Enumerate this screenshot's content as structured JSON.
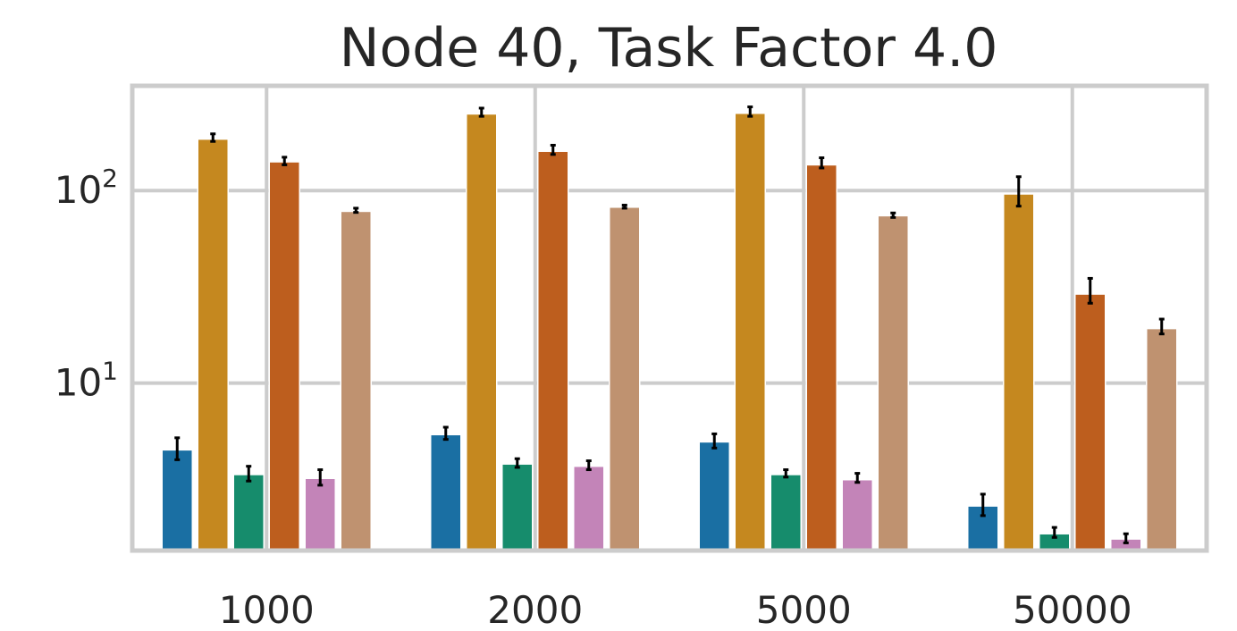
{
  "chart_data": {
    "type": "bar",
    "title": "Node 40, Task Factor 4.0",
    "xlabel": "",
    "ylabel": "",
    "y_scale": "log",
    "ylim": [
      1.35,
      350
    ],
    "y_ticks": [
      {
        "value": 10,
        "base": "10",
        "exp": "1"
      },
      {
        "value": 100,
        "base": "10",
        "exp": "2"
      }
    ],
    "grid": true,
    "legend": "none",
    "categories": [
      "1000",
      "2000",
      "5000",
      "50000"
    ],
    "series": [
      {
        "color": "#1a6fa3",
        "values": [
          4.5,
          5.4,
          4.95,
          2.3
        ],
        "errors": [
          [
            4.0,
            5.2
          ],
          [
            5.1,
            5.9
          ],
          [
            4.6,
            5.45
          ],
          [
            2.05,
            2.65
          ]
        ]
      },
      {
        "color": "#c5881f",
        "values": [
          185,
          250,
          252,
          96
        ],
        "errors": [
          [
            180,
            197
          ],
          [
            243,
            268
          ],
          [
            243,
            272
          ],
          [
            83,
            118
          ]
        ]
      },
      {
        "color": "#168c6c",
        "values": [
          3.35,
          3.8,
          3.35,
          1.65
        ],
        "errors": [
          [
            3.1,
            3.7
          ],
          [
            3.65,
            4.05
          ],
          [
            3.25,
            3.55
          ],
          [
            1.58,
            1.78
          ]
        ]
      },
      {
        "color": "#bd5e1e",
        "values": [
          141,
          160,
          136,
          29
        ],
        "errors": [
          [
            136,
            149
          ],
          [
            154,
            172
          ],
          [
            131,
            148
          ],
          [
            26,
            35
          ]
        ]
      },
      {
        "color": "#c384b8",
        "values": [
          3.2,
          3.7,
          3.15,
          1.55
        ],
        "errors": [
          [
            2.95,
            3.55
          ],
          [
            3.55,
            3.95
          ],
          [
            3.05,
            3.4
          ],
          [
            1.48,
            1.65
          ]
        ]
      },
      {
        "color": "#bf9270",
        "values": [
          78,
          82,
          74,
          19.2
        ],
        "errors": [
          [
            77,
            81
          ],
          [
            81,
            84
          ],
          [
            72.5,
            76.5
          ],
          [
            18.0,
            21.5
          ]
        ]
      }
    ]
  }
}
